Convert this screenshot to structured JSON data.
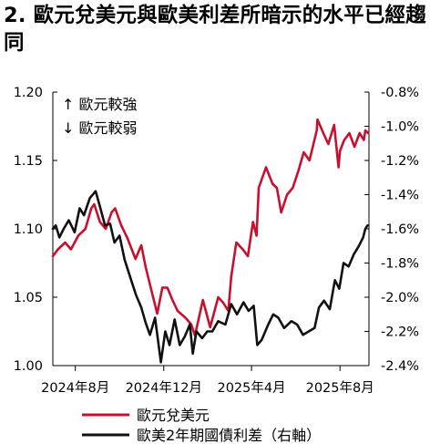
{
  "title": "2. 歐元兌美元與歐美利差所暗示的水平已經趨同",
  "annotations": {
    "up": "↑ 歐元較強",
    "down": "↓ 歐元較弱"
  },
  "chart_data": {
    "type": "line",
    "title": "2. 歐元兌美元與歐美利差所暗示的水平已經趨同",
    "x_tick_labels": [
      "2024年8月",
      "2024年12月",
      "2025年4月",
      "2025年8月"
    ],
    "x_ticks": [
      "2024-08-01",
      "2024-12-01",
      "2025-04-01",
      "2025-08-01"
    ],
    "x_range": [
      "2024-07-01",
      "2025-09-10"
    ],
    "y_left": {
      "lim": [
        1.0,
        1.2
      ],
      "ticks": [
        1.0,
        1.05,
        1.1,
        1.15,
        1.2
      ],
      "tick_labels": [
        "1.00",
        "1.05",
        "1.10",
        "1.15",
        "1.20"
      ]
    },
    "y_right": {
      "lim": [
        -2.4,
        -0.8
      ],
      "ticks": [
        -2.4,
        -2.2,
        -2.0,
        -1.8,
        -1.6,
        -1.4,
        -1.2,
        -1.0,
        -0.8
      ],
      "tick_labels": [
        "-2.4%",
        "-2.2%",
        "-2.0%",
        "-1.8%",
        "-1.6%",
        "-1.4%",
        "-1.2%",
        "-1.0%",
        "-0.8%"
      ]
    },
    "grid": false,
    "legend_position": "bottom",
    "series": [
      {
        "name": "歐元兌美元",
        "color": "#c8102e",
        "axis": "left",
        "points": [
          [
            "2024-07-01",
            1.08
          ],
          [
            "2024-07-08",
            1.085
          ],
          [
            "2024-07-18",
            1.09
          ],
          [
            "2024-07-26",
            1.085
          ],
          [
            "2024-08-05",
            1.095
          ],
          [
            "2024-08-15",
            1.1
          ],
          [
            "2024-08-23",
            1.115
          ],
          [
            "2024-08-27",
            1.118
          ],
          [
            "2024-09-04",
            1.105
          ],
          [
            "2024-09-12",
            1.1
          ],
          [
            "2024-09-20",
            1.112
          ],
          [
            "2024-09-25",
            1.115
          ],
          [
            "2024-10-03",
            1.103
          ],
          [
            "2024-10-12",
            1.093
          ],
          [
            "2024-10-23",
            1.078
          ],
          [
            "2024-10-31",
            1.088
          ],
          [
            "2024-11-06",
            1.072
          ],
          [
            "2024-11-14",
            1.055
          ],
          [
            "2024-11-22",
            1.038
          ],
          [
            "2024-11-29",
            1.057
          ],
          [
            "2024-12-06",
            1.057
          ],
          [
            "2024-12-13",
            1.048
          ],
          [
            "2024-12-20",
            1.04
          ],
          [
            "2024-12-31",
            1.035
          ],
          [
            "2025-01-08",
            1.03
          ],
          [
            "2025-01-13",
            1.022
          ],
          [
            "2025-01-24",
            1.048
          ],
          [
            "2025-02-03",
            1.028
          ],
          [
            "2025-02-14",
            1.05
          ],
          [
            "2025-02-21",
            1.046
          ],
          [
            "2025-02-28",
            1.04
          ],
          [
            "2025-03-04",
            1.065
          ],
          [
            "2025-03-11",
            1.09
          ],
          [
            "2025-03-20",
            1.085
          ],
          [
            "2025-03-27",
            1.08
          ],
          [
            "2025-04-03",
            1.105
          ],
          [
            "2025-04-08",
            1.095
          ],
          [
            "2025-04-11",
            1.13
          ],
          [
            "2025-04-21",
            1.145
          ],
          [
            "2025-04-30",
            1.133
          ],
          [
            "2025-05-06",
            1.13
          ],
          [
            "2025-05-12",
            1.112
          ],
          [
            "2025-05-20",
            1.125
          ],
          [
            "2025-05-28",
            1.13
          ],
          [
            "2025-06-05",
            1.143
          ],
          [
            "2025-06-12",
            1.156
          ],
          [
            "2025-06-20",
            1.15
          ],
          [
            "2025-06-30",
            1.172
          ],
          [
            "2025-07-01",
            1.18
          ],
          [
            "2025-07-09",
            1.17
          ],
          [
            "2025-07-16",
            1.162
          ],
          [
            "2025-07-24",
            1.176
          ],
          [
            "2025-07-30",
            1.145
          ],
          [
            "2025-08-01",
            1.157
          ],
          [
            "2025-08-07",
            1.165
          ],
          [
            "2025-08-14",
            1.17
          ],
          [
            "2025-08-21",
            1.16
          ],
          [
            "2025-08-28",
            1.17
          ],
          [
            "2025-09-03",
            1.165
          ],
          [
            "2025-09-05",
            1.172
          ],
          [
            "2025-09-09",
            1.17
          ]
        ]
      },
      {
        "name": "歐美2年期國債利差（右軸）",
        "color": "#111111",
        "axis": "right",
        "points": [
          [
            "2024-07-01",
            -1.6
          ],
          [
            "2024-07-05",
            -1.58
          ],
          [
            "2024-07-10",
            -1.65
          ],
          [
            "2024-07-16",
            -1.6
          ],
          [
            "2024-07-23",
            -1.55
          ],
          [
            "2024-07-31",
            -1.62
          ],
          [
            "2024-08-07",
            -1.48
          ],
          [
            "2024-08-13",
            -1.52
          ],
          [
            "2024-08-21",
            -1.42
          ],
          [
            "2024-08-29",
            -1.38
          ],
          [
            "2024-09-04",
            -1.47
          ],
          [
            "2024-09-11",
            -1.58
          ],
          [
            "2024-09-18",
            -1.57
          ],
          [
            "2024-09-24",
            -1.68
          ],
          [
            "2024-10-01",
            -1.64
          ],
          [
            "2024-10-08",
            -1.78
          ],
          [
            "2024-10-17",
            -1.9
          ],
          [
            "2024-10-24",
            -1.99
          ],
          [
            "2024-10-31",
            -2.06
          ],
          [
            "2024-11-06",
            -2.15
          ],
          [
            "2024-11-12",
            -2.22
          ],
          [
            "2024-11-19",
            -2.12
          ],
          [
            "2024-11-27",
            -2.38
          ],
          [
            "2024-12-03",
            -2.2
          ],
          [
            "2024-12-09",
            -2.28
          ],
          [
            "2024-12-16",
            -2.13
          ],
          [
            "2024-12-23",
            -2.28
          ],
          [
            "2024-12-30",
            -2.23
          ],
          [
            "2025-01-06",
            -2.16
          ],
          [
            "2025-01-10",
            -2.33
          ],
          [
            "2025-01-15",
            -2.2
          ],
          [
            "2025-01-23",
            -2.24
          ],
          [
            "2025-01-30",
            -2.2
          ],
          [
            "2025-02-06",
            -2.2
          ],
          [
            "2025-02-14",
            -2.14
          ],
          [
            "2025-02-24",
            -2.16
          ],
          [
            "2025-03-04",
            -2.04
          ],
          [
            "2025-03-12",
            -2.1
          ],
          [
            "2025-03-21",
            -2.03
          ],
          [
            "2025-03-28",
            -2.08
          ],
          [
            "2025-04-04",
            -2.05
          ],
          [
            "2025-04-09",
            -2.28
          ],
          [
            "2025-04-15",
            -2.25
          ],
          [
            "2025-04-24",
            -2.16
          ],
          [
            "2025-05-01",
            -2.1
          ],
          [
            "2025-05-08",
            -2.12
          ],
          [
            "2025-05-16",
            -2.18
          ],
          [
            "2025-05-26",
            -2.14
          ],
          [
            "2025-06-03",
            -2.16
          ],
          [
            "2025-06-11",
            -2.22
          ],
          [
            "2025-06-19",
            -2.2
          ],
          [
            "2025-06-27",
            -2.18
          ],
          [
            "2025-07-03",
            -2.06
          ],
          [
            "2025-07-10",
            -2.02
          ],
          [
            "2025-07-18",
            -2.07
          ],
          [
            "2025-07-25",
            -1.9
          ],
          [
            "2025-07-31",
            -1.95
          ],
          [
            "2025-08-06",
            -1.8
          ],
          [
            "2025-08-13",
            -1.82
          ],
          [
            "2025-08-20",
            -1.75
          ],
          [
            "2025-08-27",
            -1.7
          ],
          [
            "2025-09-02",
            -1.65
          ],
          [
            "2025-09-05",
            -1.6
          ],
          [
            "2025-09-08",
            -1.58
          ]
        ]
      }
    ]
  }
}
